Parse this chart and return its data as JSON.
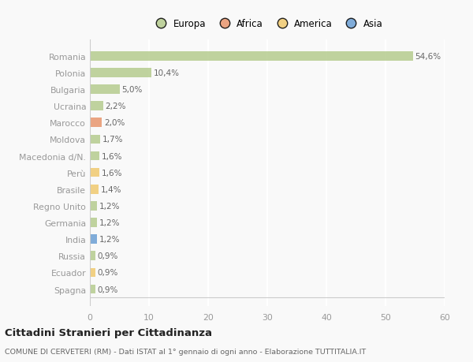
{
  "categories": [
    "Romania",
    "Polonia",
    "Bulgaria",
    "Ucraina",
    "Marocco",
    "Moldova",
    "Macedonia d/N.",
    "Perù",
    "Brasile",
    "Regno Unito",
    "Germania",
    "India",
    "Russia",
    "Ecuador",
    "Spagna"
  ],
  "values": [
    54.6,
    10.4,
    5.0,
    2.2,
    2.0,
    1.7,
    1.6,
    1.6,
    1.4,
    1.2,
    1.2,
    1.2,
    0.9,
    0.9,
    0.9
  ],
  "labels": [
    "54,6%",
    "10,4%",
    "5,0%",
    "2,2%",
    "2,0%",
    "1,7%",
    "1,6%",
    "1,6%",
    "1,4%",
    "1,2%",
    "1,2%",
    "1,2%",
    "0,9%",
    "0,9%",
    "0,9%"
  ],
  "colors": [
    "#b5cc8e",
    "#b5cc8e",
    "#b5cc8e",
    "#b5cc8e",
    "#e8956d",
    "#b5cc8e",
    "#b5cc8e",
    "#f0c96e",
    "#f0c96e",
    "#b5cc8e",
    "#b5cc8e",
    "#6b9fd4",
    "#b5cc8e",
    "#f0c96e",
    "#b5cc8e"
  ],
  "legend_labels": [
    "Europa",
    "Africa",
    "America",
    "Asia"
  ],
  "legend_colors": [
    "#b5cc8e",
    "#e8956d",
    "#f0c96e",
    "#6b9fd4"
  ],
  "title": "Cittadini Stranieri per Cittadinanza",
  "subtitle": "COMUNE DI CERVETERI (RM) - Dati ISTAT al 1° gennaio di ogni anno - Elaborazione TUTTITALIA.IT",
  "xlim": [
    0,
    60
  ],
  "xticks": [
    0,
    10,
    20,
    30,
    40,
    50,
    60
  ],
  "bg_color": "#f9f9f9",
  "grid_color": "#ffffff",
  "bar_alpha": 0.85
}
